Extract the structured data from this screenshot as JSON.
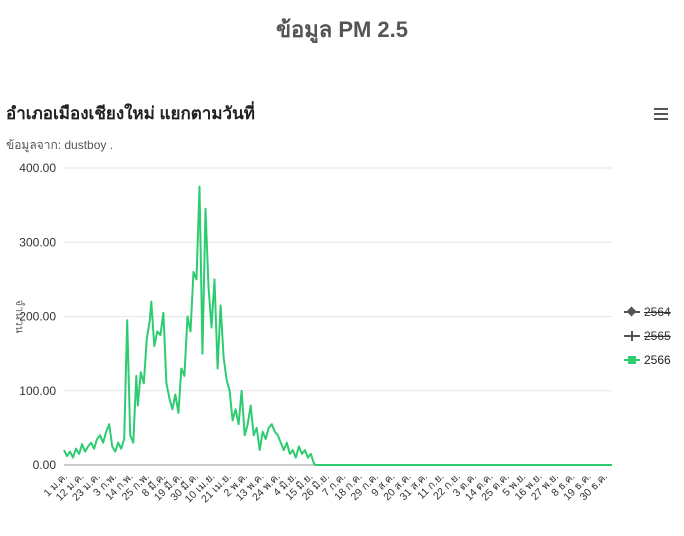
{
  "page": {
    "title": "ข้อมูล PM 2.5"
  },
  "chart": {
    "title": "อำเภอเมืองเชียงใหม่ แยกตามวันที่",
    "subtitle": "ข้อมูลจาก: dustboy ."
  },
  "icons": {
    "menu": "hamburger-menu-icon"
  },
  "colors": {
    "series_2566": "#2ecc71",
    "axis": "#333333",
    "grid": "#e6e6e6",
    "legend_hidden": "#555555"
  },
  "chart_data": {
    "type": "line",
    "title": "อำเภอเมืองเชียงใหม่ แยกตามวันที่",
    "subtitle": "ข้อมูลจาก: dustboy .",
    "ylabel": "จำนวน",
    "ylim": [
      0,
      400
    ],
    "y_ticks": [
      "0.00",
      "100.00",
      "200.00",
      "300.00",
      "400.00"
    ],
    "grid": true,
    "legend_position": "right",
    "x_tick_labels": [
      "1 ม.ค.",
      "12 ม.ค.",
      "23 ม.ค.",
      "3 ก.พ.",
      "14 ก.พ.",
      "25 ก.พ.",
      "8 มี.ค.",
      "19 มี.ค.",
      "30 มี.ค.",
      "10 เม.ย.",
      "21 เม.ย.",
      "2 พ.ค.",
      "13 พ.ค.",
      "24 พ.ค.",
      "4 มิ.ย.",
      "15 มิ.ย.",
      "26 มิ.ย.",
      "7 ก.ค.",
      "18 ก.ค.",
      "29 ก.ค.",
      "9 ส.ค.",
      "20 ส.ค.",
      "31 ส.ค.",
      "11 ก.ย.",
      "22 ก.ย.",
      "3 ต.ค.",
      "14 ต.ค.",
      "25 ต.ค.",
      "5 พ.ย.",
      "16 พ.ย.",
      "27 พ.ย.",
      "8 ธ.ค.",
      "19 ธ.ค.",
      "30 ธ.ค."
    ],
    "x_start": "2023-01-01",
    "x_end": "2023-12-31",
    "series": [
      {
        "name": "2564",
        "visible": false,
        "color": "#555555",
        "marker": "diamond",
        "values": []
      },
      {
        "name": "2565",
        "visible": false,
        "color": "#555555",
        "marker": "cross",
        "values": []
      },
      {
        "name": "2566",
        "visible": true,
        "color": "#2ecc71",
        "marker": "square",
        "values": [
          [
            "2023-01-01",
            20
          ],
          [
            "2023-01-03",
            12
          ],
          [
            "2023-01-05",
            18
          ],
          [
            "2023-01-07",
            10
          ],
          [
            "2023-01-09",
            22
          ],
          [
            "2023-01-11",
            15
          ],
          [
            "2023-01-13",
            28
          ],
          [
            "2023-01-15",
            18
          ],
          [
            "2023-01-17",
            25
          ],
          [
            "2023-01-19",
            30
          ],
          [
            "2023-01-21",
            22
          ],
          [
            "2023-01-23",
            35
          ],
          [
            "2023-01-25",
            40
          ],
          [
            "2023-01-27",
            30
          ],
          [
            "2023-01-29",
            45
          ],
          [
            "2023-01-31",
            55
          ],
          [
            "2023-02-02",
            25
          ],
          [
            "2023-02-04",
            18
          ],
          [
            "2023-02-06",
            30
          ],
          [
            "2023-02-08",
            22
          ],
          [
            "2023-02-10",
            35
          ],
          [
            "2023-02-12",
            195
          ],
          [
            "2023-02-14",
            40
          ],
          [
            "2023-02-16",
            30
          ],
          [
            "2023-02-18",
            120
          ],
          [
            "2023-02-19",
            80
          ],
          [
            "2023-02-21",
            125
          ],
          [
            "2023-02-23",
            110
          ],
          [
            "2023-02-25",
            170
          ],
          [
            "2023-02-27",
            195
          ],
          [
            "2023-02-28",
            220
          ],
          [
            "2023-03-02",
            160
          ],
          [
            "2023-03-04",
            180
          ],
          [
            "2023-03-06",
            175
          ],
          [
            "2023-03-08",
            205
          ],
          [
            "2023-03-10",
            110
          ],
          [
            "2023-03-12",
            90
          ],
          [
            "2023-03-14",
            75
          ],
          [
            "2023-03-16",
            95
          ],
          [
            "2023-03-18",
            70
          ],
          [
            "2023-03-20",
            130
          ],
          [
            "2023-03-22",
            120
          ],
          [
            "2023-03-24",
            200
          ],
          [
            "2023-03-26",
            180
          ],
          [
            "2023-03-28",
            260
          ],
          [
            "2023-03-30",
            250
          ],
          [
            "2023-04-01",
            375
          ],
          [
            "2023-04-03",
            150
          ],
          [
            "2023-04-05",
            345
          ],
          [
            "2023-04-07",
            240
          ],
          [
            "2023-04-09",
            185
          ],
          [
            "2023-04-11",
            250
          ],
          [
            "2023-04-13",
            130
          ],
          [
            "2023-04-15",
            215
          ],
          [
            "2023-04-17",
            145
          ],
          [
            "2023-04-19",
            115
          ],
          [
            "2023-04-21",
            100
          ],
          [
            "2023-04-23",
            60
          ],
          [
            "2023-04-25",
            75
          ],
          [
            "2023-04-27",
            55
          ],
          [
            "2023-04-29",
            100
          ],
          [
            "2023-05-01",
            40
          ],
          [
            "2023-05-03",
            55
          ],
          [
            "2023-05-05",
            80
          ],
          [
            "2023-05-07",
            40
          ],
          [
            "2023-05-09",
            50
          ],
          [
            "2023-05-11",
            20
          ],
          [
            "2023-05-13",
            45
          ],
          [
            "2023-05-15",
            35
          ],
          [
            "2023-05-17",
            50
          ],
          [
            "2023-05-19",
            55
          ],
          [
            "2023-05-21",
            45
          ],
          [
            "2023-05-23",
            40
          ],
          [
            "2023-05-25",
            30
          ],
          [
            "2023-05-27",
            20
          ],
          [
            "2023-05-29",
            30
          ],
          [
            "2023-05-31",
            15
          ],
          [
            "2023-06-02",
            20
          ],
          [
            "2023-06-04",
            10
          ],
          [
            "2023-06-06",
            25
          ],
          [
            "2023-06-08",
            15
          ],
          [
            "2023-06-10",
            20
          ],
          [
            "2023-06-12",
            10
          ],
          [
            "2023-06-14",
            15
          ],
          [
            "2023-06-16",
            2
          ],
          [
            "2023-06-17",
            0
          ],
          [
            "2023-12-31",
            0
          ]
        ]
      }
    ]
  }
}
